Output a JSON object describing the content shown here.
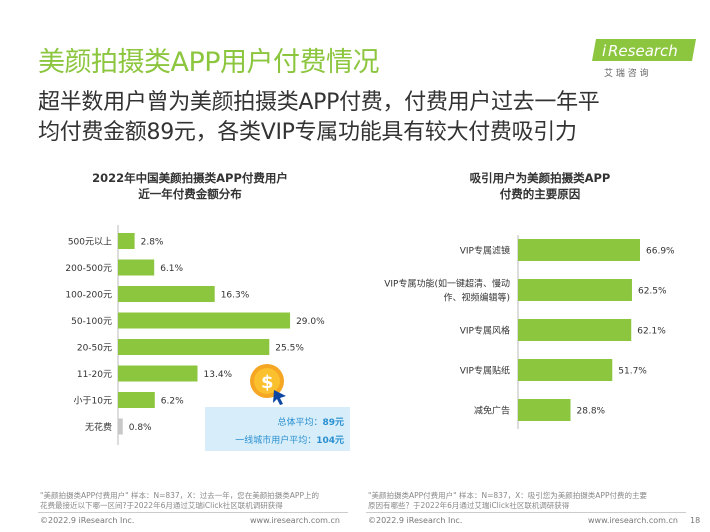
{
  "header": {
    "title": "美颜拍摄类APP用户付费情况",
    "subtitle_line1": "超半数用户曾为美颜拍摄类APP付费，付费用户过去一年平",
    "subtitle_line2": "均付费金额89元，各类VIP专属功能具有较大付费吸引力",
    "logo_brand_i": "i",
    "logo_brand_rest": "Research",
    "logo_cn": "艾 瑞 咨 询",
    "brand_color": "#8cc63f"
  },
  "left_panel": {
    "title_line1": "2022年中国美颜拍摄类APP付费用户",
    "title_line2": "近一年付费金额分布",
    "avg_overall_label": "总体平均：",
    "avg_overall_value": "89元",
    "avg_tier1_label": "一线城市用户平均：",
    "avg_tier1_value": "104元",
    "coin_icon": "dollar-coin-icon",
    "footnote_line1": "\"美颜拍摄类APP付费用户\" 样本：N=837，X：过去一年，您在美颜拍摄类APP上的",
    "footnote_line2": "花费最接近以下哪一区间?于2022年6月通过艾瑞iClick社区联机调研获得",
    "footer_left": "©2022.9 iResearch Inc.",
    "footer_right": "www.iresearch.com.cn"
  },
  "right_panel": {
    "title_line1": "吸引用户为美颜拍摄类APP",
    "title_line2": "付费的主要原因",
    "footnote_line1": "\"美颜拍摄类APP付费用户\" 样本：N=837，X：吸引您为美颜拍摄类APP付费的主要",
    "footnote_line2": "原因有哪些？于2022年6月通过艾瑞iClick社区联机调研获得",
    "footer_left": "©2022.9 iResearch Inc.",
    "footer_right": "www.iresearch.com.cn",
    "page_number": "18"
  },
  "chart_data": [
    {
      "type": "bar",
      "orientation": "horizontal",
      "title": "2022年中国美颜拍摄类APP付费用户近一年付费金额分布",
      "categories": [
        "500元以上",
        "200-500元",
        "100-200元",
        "50-100元",
        "20-50元",
        "11-20元",
        "小于10元",
        "无花费"
      ],
      "values": [
        2.8,
        6.1,
        16.3,
        29.0,
        25.5,
        13.4,
        6.2,
        0.8
      ],
      "labels": [
        "2.8%",
        "6.1%",
        "16.3%",
        "29.0%",
        "25.5%",
        "13.4%",
        "6.2%",
        "0.8%"
      ],
      "unit": "%",
      "bar_color": "#8cc63f",
      "last_bar_color": "#c8c8c8"
    },
    {
      "type": "bar",
      "orientation": "horizontal",
      "title": "吸引用户为美颜拍摄类APP付费的主要原因",
      "categories": [
        [
          "VIP专属滤镜"
        ],
        [
          "VIP专属功能(如一键超清、慢动",
          "作、视频编辑等)"
        ],
        [
          "VIP专属风格"
        ],
        [
          "VIP专属贴纸"
        ],
        [
          "减免广告"
        ]
      ],
      "values": [
        66.9,
        62.5,
        62.1,
        51.7,
        28.8
      ],
      "labels": [
        "66.9%",
        "62.5%",
        "62.1%",
        "51.7%",
        "28.8%"
      ],
      "unit": "%",
      "bar_color": "#8cc63f"
    }
  ]
}
